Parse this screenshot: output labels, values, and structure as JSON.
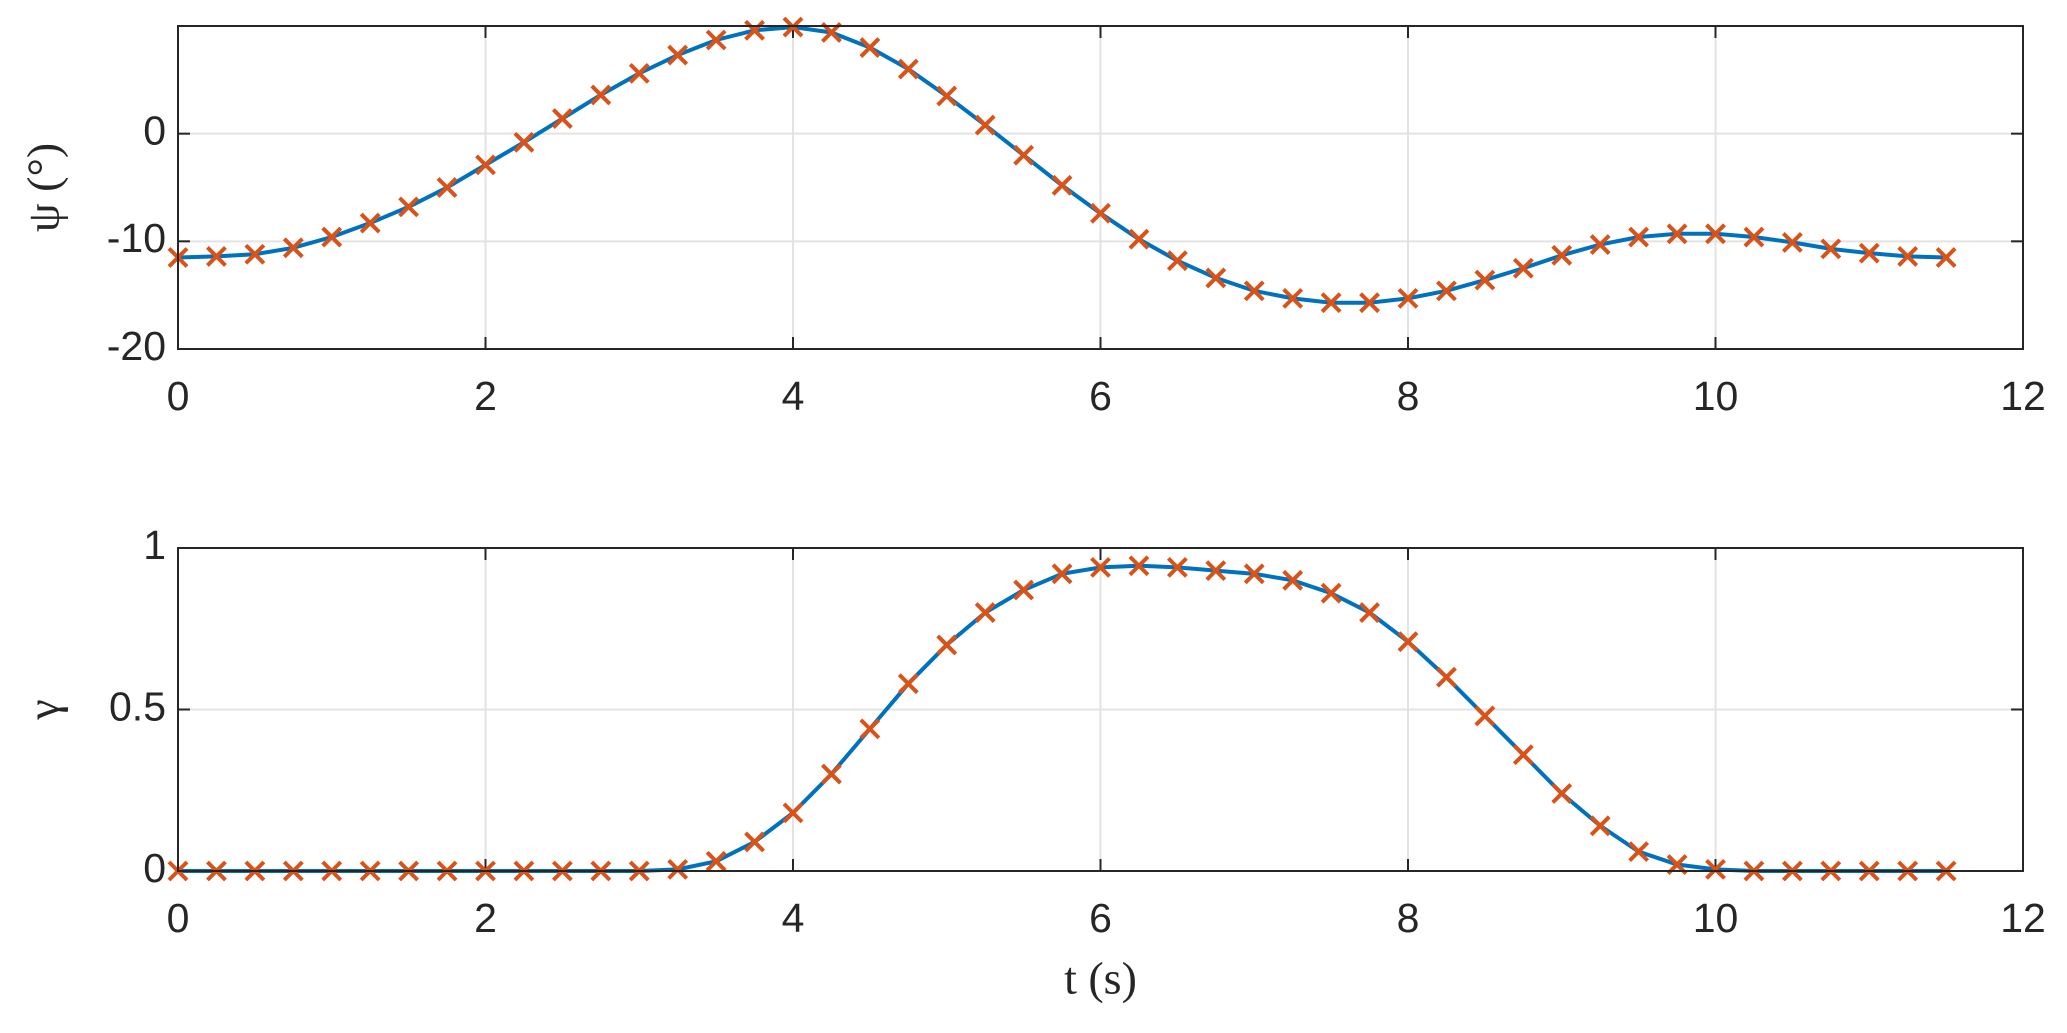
{
  "chart_data": [
    {
      "type": "line",
      "ylabel": "ψ (°)",
      "x": [
        0,
        0.25,
        0.5,
        0.75,
        1,
        1.25,
        1.5,
        1.75,
        2,
        2.25,
        2.5,
        2.75,
        3,
        3.25,
        3.5,
        3.75,
        4,
        4.25,
        4.5,
        4.75,
        5,
        5.25,
        5.5,
        5.75,
        6,
        6.25,
        6.5,
        6.75,
        7,
        7.25,
        7.5,
        7.75,
        8,
        8.25,
        8.5,
        8.75,
        9,
        9.25,
        9.5,
        9.75,
        10,
        10.25,
        10.5,
        10.75,
        11,
        11.25,
        11.5
      ],
      "series": [
        {
          "color": "#0072bd",
          "marker": "none",
          "values": [
            -11.5,
            -11.4,
            -11.2,
            -10.6,
            -9.6,
            -8.3,
            -6.8,
            -5.0,
            -2.9,
            -0.8,
            1.4,
            3.6,
            5.6,
            7.3,
            8.7,
            9.6,
            9.9,
            9.4,
            8.0,
            6.0,
            3.5,
            0.8,
            -2.0,
            -4.8,
            -7.4,
            -9.8,
            -11.8,
            -13.4,
            -14.6,
            -15.3,
            -15.7,
            -15.7,
            -15.3,
            -14.6,
            -13.6,
            -12.5,
            -11.3,
            -10.3,
            -9.6,
            -9.3,
            -9.3,
            -9.6,
            -10.1,
            -10.7,
            -11.1,
            -11.4,
            -11.5
          ]
        },
        {
          "color": "#d95319",
          "marker": "x",
          "values": [
            -11.5,
            -11.4,
            -11.2,
            -10.6,
            -9.6,
            -8.3,
            -6.8,
            -5.0,
            -2.9,
            -0.8,
            1.4,
            3.6,
            5.6,
            7.3,
            8.7,
            9.6,
            9.9,
            9.4,
            8.0,
            6.0,
            3.5,
            0.8,
            -2.0,
            -4.8,
            -7.4,
            -9.8,
            -11.8,
            -13.4,
            -14.6,
            -15.3,
            -15.7,
            -15.7,
            -15.3,
            -14.6,
            -13.6,
            -12.5,
            -11.3,
            -10.3,
            -9.6,
            -9.3,
            -9.3,
            -9.6,
            -10.1,
            -10.7,
            -11.1,
            -11.4,
            -11.5
          ]
        }
      ],
      "xlim": [
        0,
        12
      ],
      "xticks": [
        0,
        2,
        4,
        6,
        8,
        10,
        12
      ],
      "ylim": [
        -20,
        10
      ],
      "yticks": [
        -20,
        -10,
        0
      ],
      "grid": true
    },
    {
      "type": "line",
      "ylabel": "γ",
      "xlabel": "t (s)",
      "x": [
        0,
        0.25,
        0.5,
        0.75,
        1,
        1.25,
        1.5,
        1.75,
        2,
        2.25,
        2.5,
        2.75,
        3,
        3.25,
        3.5,
        3.75,
        4,
        4.25,
        4.5,
        4.75,
        5,
        5.25,
        5.5,
        5.75,
        6,
        6.25,
        6.5,
        6.75,
        7,
        7.25,
        7.5,
        7.75,
        8,
        8.25,
        8.5,
        8.75,
        9,
        9.25,
        9.5,
        9.75,
        10,
        10.25,
        10.5,
        10.75,
        11,
        11.25,
        11.5
      ],
      "series": [
        {
          "color": "#0072bd",
          "marker": "none",
          "values": [
            0,
            0,
            0,
            0,
            0,
            0,
            0,
            0,
            0,
            0,
            0,
            0,
            0,
            0.005,
            0.03,
            0.09,
            0.18,
            0.3,
            0.44,
            0.58,
            0.7,
            0.8,
            0.87,
            0.92,
            0.94,
            0.945,
            0.94,
            0.93,
            0.92,
            0.9,
            0.86,
            0.8,
            0.71,
            0.6,
            0.48,
            0.36,
            0.24,
            0.14,
            0.06,
            0.02,
            0.005,
            0,
            0,
            0,
            0,
            0,
            0
          ]
        },
        {
          "color": "#d95319",
          "marker": "x",
          "values": [
            0,
            0,
            0,
            0,
            0,
            0,
            0,
            0,
            0,
            0,
            0,
            0,
            0,
            0.005,
            0.03,
            0.09,
            0.18,
            0.3,
            0.44,
            0.58,
            0.7,
            0.8,
            0.87,
            0.92,
            0.94,
            0.945,
            0.94,
            0.93,
            0.92,
            0.9,
            0.86,
            0.8,
            0.71,
            0.6,
            0.48,
            0.36,
            0.24,
            0.14,
            0.06,
            0.02,
            0.005,
            0,
            0,
            0,
            0,
            0,
            0
          ]
        }
      ],
      "xlim": [
        0,
        12
      ],
      "xticks": [
        0,
        2,
        4,
        6,
        8,
        10,
        12
      ],
      "ylim": [
        0,
        1
      ],
      "yticks": [
        0,
        0.5,
        1
      ],
      "grid": true
    }
  ]
}
